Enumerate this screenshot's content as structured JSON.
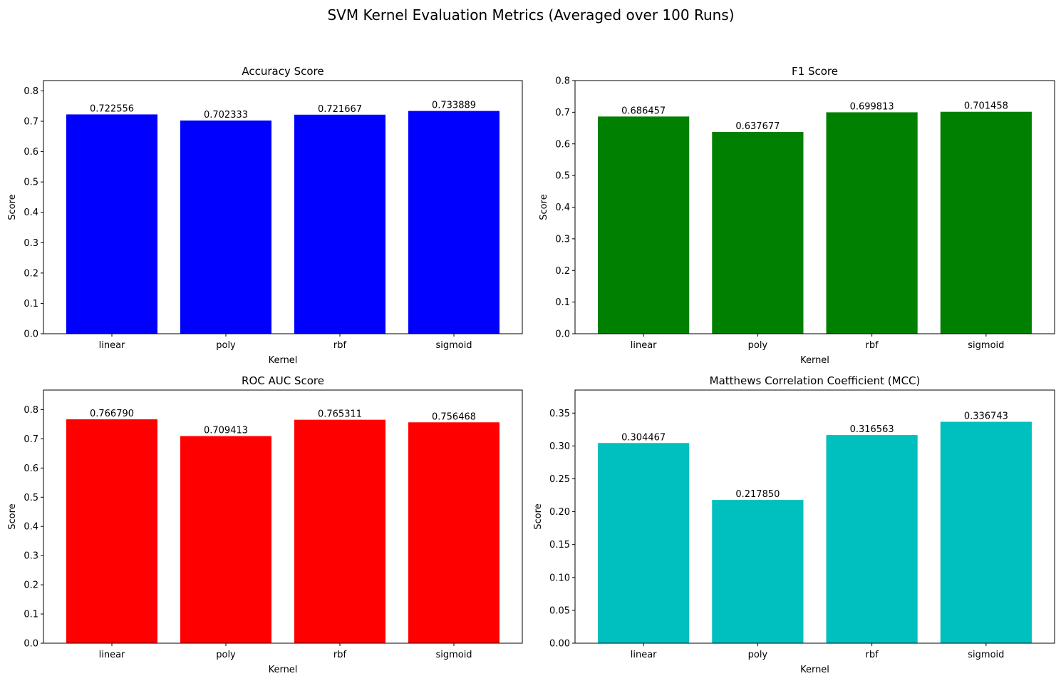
{
  "figure": {
    "title": "SVM Kernel Evaluation Metrics (Averaged over 100 Runs)"
  },
  "chart_data": [
    {
      "type": "bar",
      "title": "Accuracy Score",
      "xlabel": "Kernel",
      "ylabel": "Score",
      "categories": [
        "linear",
        "poly",
        "rbf",
        "sigmoid"
      ],
      "values": [
        0.722556,
        0.702333,
        0.721667,
        0.733889
      ],
      "data_labels": [
        "0.722556",
        "0.702333",
        "0.721667",
        "0.733889"
      ],
      "color": "#0000ff",
      "ylim": [
        0,
        0.834
      ],
      "yticks": [
        0.0,
        0.1,
        0.2,
        0.3,
        0.4,
        0.5,
        0.6,
        0.7,
        0.8
      ],
      "ytick_labels": [
        "0.0",
        "0.1",
        "0.2",
        "0.3",
        "0.4",
        "0.5",
        "0.6",
        "0.7",
        "0.8"
      ],
      "grid": false,
      "legend": "none"
    },
    {
      "type": "bar",
      "title": "F1 Score",
      "xlabel": "Kernel",
      "ylabel": "Score",
      "categories": [
        "linear",
        "poly",
        "rbf",
        "sigmoid"
      ],
      "values": [
        0.686457,
        0.637677,
        0.699813,
        0.701458
      ],
      "data_labels": [
        "0.686457",
        "0.637677",
        "0.699813",
        "0.701458"
      ],
      "color": "#008000",
      "ylim": [
        0,
        0.8
      ],
      "yticks": [
        0.0,
        0.1,
        0.2,
        0.3,
        0.4,
        0.5,
        0.6,
        0.7,
        0.8
      ],
      "ytick_labels": [
        "0.0",
        "0.1",
        "0.2",
        "0.3",
        "0.4",
        "0.5",
        "0.6",
        "0.7",
        "0.8"
      ],
      "grid": false,
      "legend": "none"
    },
    {
      "type": "bar",
      "title": "ROC AUC Score",
      "xlabel": "Kernel",
      "ylabel": "Score",
      "categories": [
        "linear",
        "poly",
        "rbf",
        "sigmoid"
      ],
      "values": [
        0.76679,
        0.709413,
        0.765311,
        0.756468
      ],
      "data_labels": [
        "0.766790",
        "0.709413",
        "0.765311",
        "0.756468"
      ],
      "color": "#ff0000",
      "ylim": [
        0,
        0.867
      ],
      "yticks": [
        0.0,
        0.1,
        0.2,
        0.3,
        0.4,
        0.5,
        0.6,
        0.7,
        0.8
      ],
      "ytick_labels": [
        "0.0",
        "0.1",
        "0.2",
        "0.3",
        "0.4",
        "0.5",
        "0.6",
        "0.7",
        "0.8"
      ],
      "grid": false,
      "legend": "none"
    },
    {
      "type": "bar",
      "title": "Matthews Correlation Coefficient (MCC)",
      "xlabel": "Kernel",
      "ylabel": "Score",
      "categories": [
        "linear",
        "poly",
        "rbf",
        "sigmoid"
      ],
      "values": [
        0.304467,
        0.21785,
        0.316563,
        0.336743
      ],
      "data_labels": [
        "0.304467",
        "0.217850",
        "0.316563",
        "0.336743"
      ],
      "color": "#00bfbf",
      "ylim": [
        0,
        0.385
      ],
      "yticks": [
        0.0,
        0.05,
        0.1,
        0.15,
        0.2,
        0.25,
        0.3,
        0.35
      ],
      "ytick_labels": [
        "0.00",
        "0.05",
        "0.10",
        "0.15",
        "0.20",
        "0.25",
        "0.30",
        "0.35"
      ],
      "grid": false,
      "legend": "none"
    }
  ]
}
